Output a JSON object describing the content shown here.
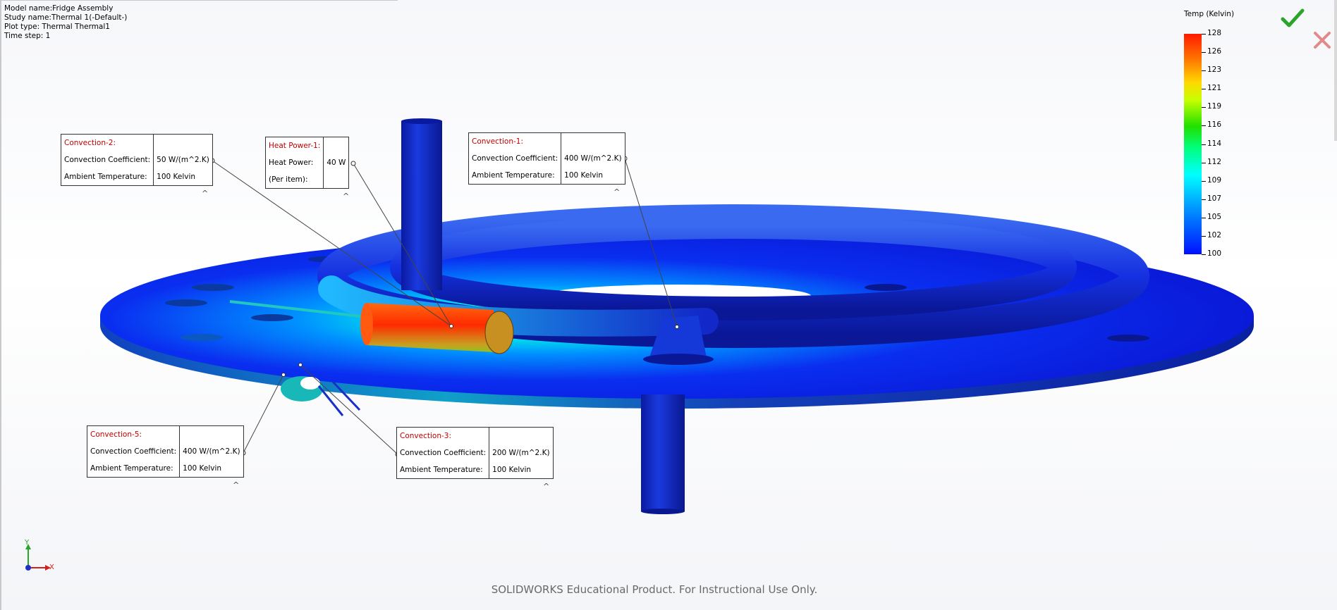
{
  "info": {
    "model": "Model name:Fridge Assembly",
    "study": "Study name:Thermal 1(-Default-)",
    "plot": "Plot type: Thermal Thermal1",
    "step": "Time step: 1"
  },
  "callouts": {
    "conv2": {
      "title": "Convection-2:",
      "k1": "Convection Coefficient:",
      "v1": "50 W/(m^2.K)",
      "k2": "Ambient Temperature:",
      "v2": "100 Kelvin"
    },
    "heat1": {
      "title": "Heat Power-1:",
      "k1": "Heat Power:",
      "v1": "40 W",
      "k2": "(Per item):",
      "v2": ""
    },
    "conv1": {
      "title": "Convection-1:",
      "k1": "Convection Coefficient:",
      "v1": "400 W/(m^2.K)",
      "k2": "Ambient Temperature:",
      "v2": "100 Kelvin"
    },
    "conv5": {
      "title": "Convection-5:",
      "k1": "Convection Coefficient:",
      "v1": "400 W/(m^2.K)",
      "k2": "Ambient Temperature:",
      "v2": "100 Kelvin"
    },
    "conv3": {
      "title": "Convection-3:",
      "k1": "Convection Coefficient:",
      "v1": "200 W/(m^2.K)",
      "k2": "Ambient Temperature:",
      "v2": "100 Kelvin"
    }
  },
  "caret": "^",
  "legend": {
    "title": "Temp (Kelvin)",
    "ticks": [
      "128",
      "126",
      "123",
      "121",
      "119",
      "116",
      "114",
      "112",
      "109",
      "107",
      "105",
      "102",
      "100"
    ]
  },
  "triad": {
    "y": "Y",
    "x": "X"
  },
  "watermark": "SOLIDWORKS Educational Product. For Instructional Use Only.",
  "colors": {
    "accent_ok": "#2aa52a",
    "cancel": "#e08a8a",
    "title_red": "#c00000"
  }
}
